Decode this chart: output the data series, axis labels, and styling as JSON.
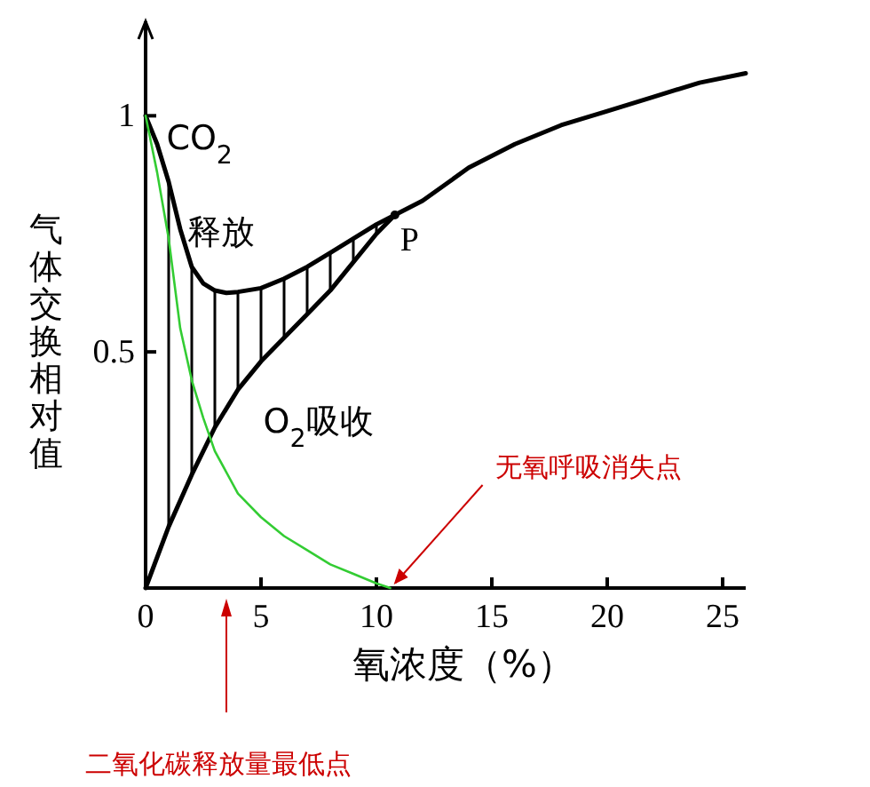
{
  "chart_data": {
    "type": "line",
    "xlabel": "氧浓度（%）",
    "ylabel": "气体交换相对值",
    "xlim": [
      0,
      26
    ],
    "ylim": [
      0,
      1.2
    ],
    "xticks": [
      0,
      5,
      10,
      15,
      20,
      25
    ],
    "yticks": [
      0.5,
      1
    ],
    "legend": false,
    "marker": "none",
    "series": [
      {
        "name": "CO$_{2}$释放",
        "color": "#000000",
        "x": [
          0,
          0.5,
          1,
          1.5,
          2,
          2.5,
          3,
          3.5,
          4,
          5,
          6,
          7,
          8,
          9,
          10,
          10.8,
          12,
          14,
          16,
          18,
          20,
          22,
          24,
          26
        ],
        "values": [
          1.0,
          0.94,
          0.86,
          0.76,
          0.68,
          0.645,
          0.63,
          0.625,
          0.627,
          0.635,
          0.655,
          0.68,
          0.71,
          0.74,
          0.77,
          0.79,
          0.82,
          0.89,
          0.94,
          0.98,
          1.01,
          1.04,
          1.07,
          1.09
        ]
      },
      {
        "name": "O$_{2}$吸收",
        "color": "#000000",
        "x": [
          0,
          1,
          2,
          3,
          4,
          5,
          6,
          7,
          8,
          9,
          10,
          10.8
        ],
        "values": [
          0,
          0.13,
          0.24,
          0.34,
          0.42,
          0.48,
          0.53,
          0.58,
          0.63,
          0.69,
          0.75,
          0.79
        ]
      },
      {
        "color": "#33cc33",
        "x": [
          0,
          0.5,
          1,
          1.5,
          2,
          2.5,
          3,
          4,
          5,
          6,
          7,
          8,
          9,
          10,
          10.6
        ],
        "values": [
          1.0,
          0.88,
          0.74,
          0.55,
          0.44,
          0.36,
          0.29,
          0.2,
          0.15,
          0.11,
          0.08,
          0.05,
          0.03,
          0.01,
          0
        ]
      }
    ],
    "annotations": [
      {
        "text": "P",
        "x": 10.8,
        "y": 0.79
      },
      {
        "text": "无氧呼吸消失点",
        "x": 10.6,
        "y": 0
      },
      "二氧化碳释放量最低点"
    ]
  }
}
